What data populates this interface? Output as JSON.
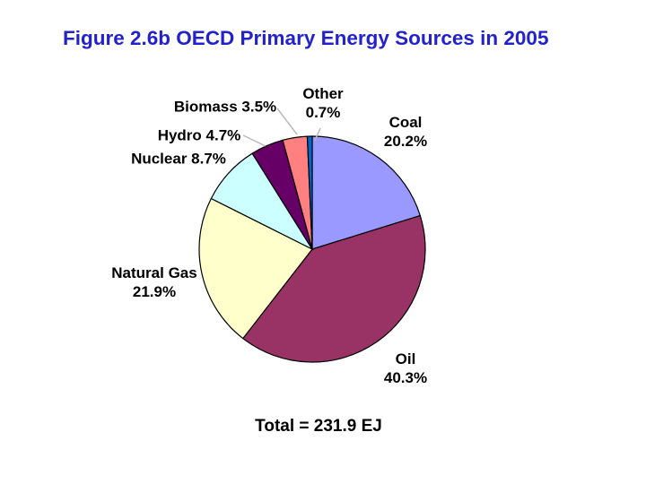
{
  "title": "Figure 2.6b OECD Primary Energy Sources in 2005",
  "total_label": "Total = 231.9 EJ",
  "colors": {
    "title_text": "#2222CC",
    "label_text": "#000000",
    "slice_outline": "#000000",
    "leader_line": "#B8B8B8",
    "background": "#FFFFFF"
  },
  "chart_data": {
    "type": "pie",
    "title": "Figure 2.6b OECD Primary Energy Sources in 2005",
    "total_text": "Total = 231.9 EJ",
    "total_value": 231.9,
    "total_unit": "EJ",
    "start_position": "12-o-clock",
    "direction": "clockwise",
    "legend_position": "none (labels around pie with leader lines for small slices)",
    "slices": [
      {
        "name": "Coal",
        "value": 20.2,
        "pct_label": "20.2%",
        "color": "#9999FF"
      },
      {
        "name": "Oil",
        "value": 40.3,
        "pct_label": "40.3%",
        "color": "#993366"
      },
      {
        "name": "Natural Gas",
        "value": 21.9,
        "pct_label": "21.9%",
        "color": "#FFFFCC"
      },
      {
        "name": "Nuclear",
        "value": 8.7,
        "pct_label": "8.7%",
        "color": "#CCFFFF"
      },
      {
        "name": "Hydro",
        "value": 4.7,
        "pct_label": "4.7%",
        "color": "#660066"
      },
      {
        "name": "Biomass",
        "value": 3.5,
        "pct_label": "3.5%",
        "color": "#FF8080"
      },
      {
        "name": "Other",
        "value": 0.7,
        "pct_label": "0.7%",
        "color": "#0066CC"
      }
    ]
  }
}
